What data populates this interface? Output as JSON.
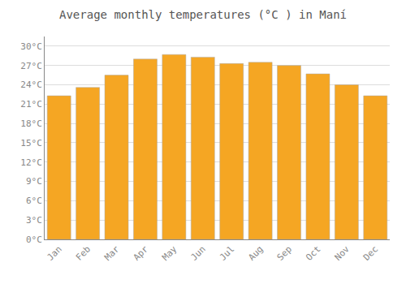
{
  "chart_data": {
    "type": "bar",
    "title": "Average monthly temperatures (°C ) in Maní",
    "categories": [
      "Jan",
      "Feb",
      "Mar",
      "Apr",
      "May",
      "Jun",
      "Jul",
      "Aug",
      "Sep",
      "Oct",
      "Nov",
      "Dec"
    ],
    "values": [
      22.3,
      23.6,
      25.5,
      28.0,
      28.7,
      28.3,
      27.3,
      27.5,
      27.0,
      25.7,
      24.0,
      22.3
    ],
    "color": "#F5A623",
    "ylim": [
      0,
      31.5
    ],
    "yticks": [
      {
        "value": 0,
        "label": "0°C"
      },
      {
        "value": 3,
        "label": "3°C"
      },
      {
        "value": 6,
        "label": "6°C"
      },
      {
        "value": 9,
        "label": "9°C"
      },
      {
        "value": 12,
        "label": "12°C"
      },
      {
        "value": 15,
        "label": "15°C"
      },
      {
        "value": 18,
        "label": "18°C"
      },
      {
        "value": 21,
        "label": "21°C"
      },
      {
        "value": 24,
        "label": "24°C"
      },
      {
        "value": 27,
        "label": "27°C"
      },
      {
        "value": 30,
        "label": "30°C"
      }
    ],
    "grid": true
  }
}
